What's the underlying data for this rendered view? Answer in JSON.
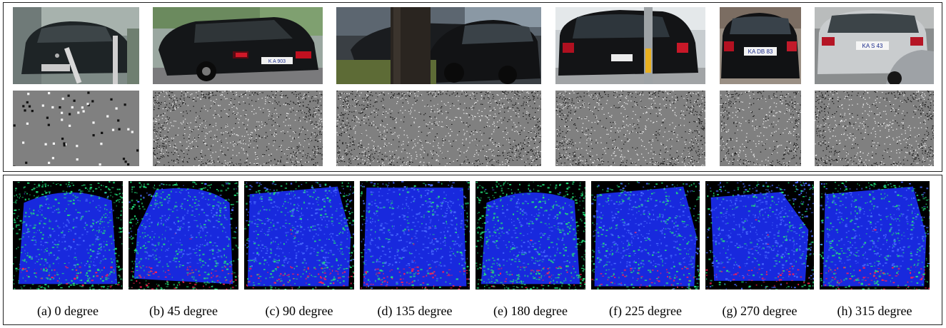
{
  "colors": {
    "depth_background": "#808080",
    "heatmap_background": "#000000",
    "heatmap_primary": "#1a2cf0",
    "heatmap_secondary": "#22e07a",
    "heatmap_accent": "#ff2050"
  },
  "top_rows": {
    "photos": [
      {
        "name": "car-photo-1",
        "content": "blurry dark car front behind posts"
      },
      {
        "name": "car-photo-2",
        "content": "black station wagon rear-side view"
      },
      {
        "name": "car-photo-3",
        "content": "black small car behind tree trunk"
      },
      {
        "name": "car-photo-4",
        "content": "black hatchback rear view"
      },
      {
        "name": "car-photo-5",
        "content": "black car rear view"
      },
      {
        "name": "car-photo-6",
        "content": "silver station wagon rear view"
      }
    ],
    "plates": [
      "",
      "",
      "",
      "",
      "KA DB 83",
      "KA S 43"
    ]
  },
  "bottom_row": {
    "captions": [
      "(a) 0 degree",
      "(b) 45 degree",
      "(c) 90 degree",
      "(d) 135 degree",
      "(e) 180 degree",
      "(f) 225 degree",
      "(g) 270 degree",
      "(h) 315 degree"
    ]
  }
}
